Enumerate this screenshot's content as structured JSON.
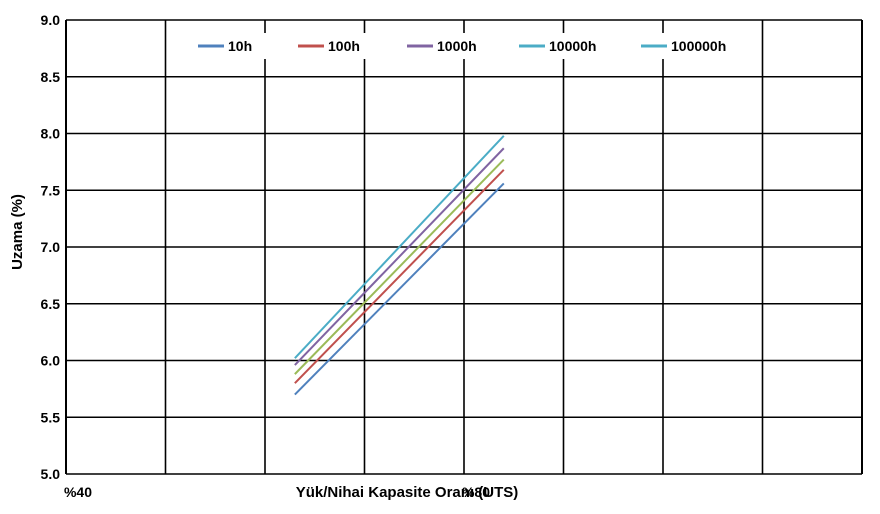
{
  "chart_data": {
    "type": "line",
    "title": "",
    "xlabel": "Yük/Nihai Kapasite Oranı (UTS)",
    "ylabel": "Uzama (%)",
    "x_tick_labels": [
      {
        "x": 40,
        "label": "%40"
      },
      {
        "x": 80,
        "label": "%80"
      }
    ],
    "xlim": [
      40,
      120
    ],
    "ylim": [
      5.0,
      9.0
    ],
    "y_ticks": [
      "5.0",
      "5.5",
      "6.0",
      "6.5",
      "7.0",
      "7.5",
      "8.0",
      "8.5",
      "9.0"
    ],
    "grid": true,
    "legend": {
      "placement": "top",
      "entries": [
        "10h",
        "100h",
        "1000h",
        "10000h",
        "100000h"
      ]
    },
    "series": [
      {
        "name": "10h",
        "color": "#4f81bd",
        "x": [
          63,
          84
        ],
        "y": [
          5.7,
          7.56
        ]
      },
      {
        "name": "100h",
        "color": "#c0504d",
        "x": [
          63,
          84
        ],
        "y": [
          5.8,
          7.68
        ]
      },
      {
        "name": "1000h",
        "color": "#8064a2",
        "x": [
          63,
          84
        ],
        "y": [
          5.96,
          7.87
        ]
      },
      {
        "name": "",
        "color": "#9bbb59",
        "x": [
          63,
          84
        ],
        "y": [
          5.88,
          7.77
        ]
      },
      {
        "name": "10000h",
        "color": "#4bacc6",
        "x": [
          63,
          84
        ],
        "y": [
          6.02,
          7.98
        ]
      }
    ],
    "legend_colors": [
      "#4f81bd",
      "#c0504d",
      "#8064a2",
      "#4bacc6",
      "#4bacc6"
    ]
  }
}
